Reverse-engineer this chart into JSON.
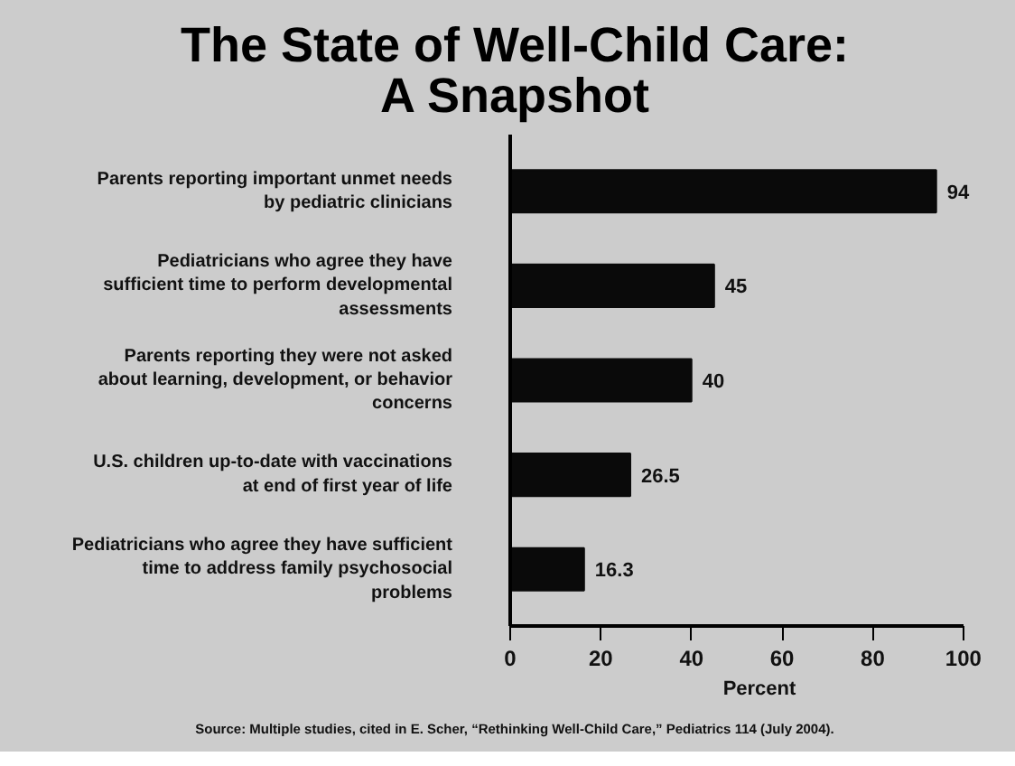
{
  "chart_data": {
    "type": "bar",
    "orientation": "horizontal",
    "title": "The State of Well-Child Care:\nA Snapshot",
    "categories": [
      "Parents reporting important unmet needs\nby pediatric clinicians",
      "Pediatricians who agree they have\nsufficient time to perform developmental\nassessments",
      "Parents reporting they were not asked\nabout learning, development, or behavior\nconcerns",
      "U.S. children up-to-date with vaccinations\nat end of first year of life",
      "Pediatricians who agree they have sufficient\ntime to address family psychosocial\nproblems"
    ],
    "values": [
      94,
      45,
      40,
      26.5,
      16.3
    ],
    "color": "#0a0a0a",
    "data_labels": true,
    "value_labels": [
      "94",
      "45",
      "40",
      "26.5",
      "16.3"
    ],
    "xlim": [
      0,
      100
    ],
    "xticks": [
      0,
      20,
      40,
      60,
      80,
      100
    ],
    "xlabel": "Percent",
    "grid": false,
    "annotations": [
      "Source: Multiple studies, cited in E. Scher, “Rethinking Well-Child Care,” Pediatrics 114 (July 2004)."
    ]
  }
}
